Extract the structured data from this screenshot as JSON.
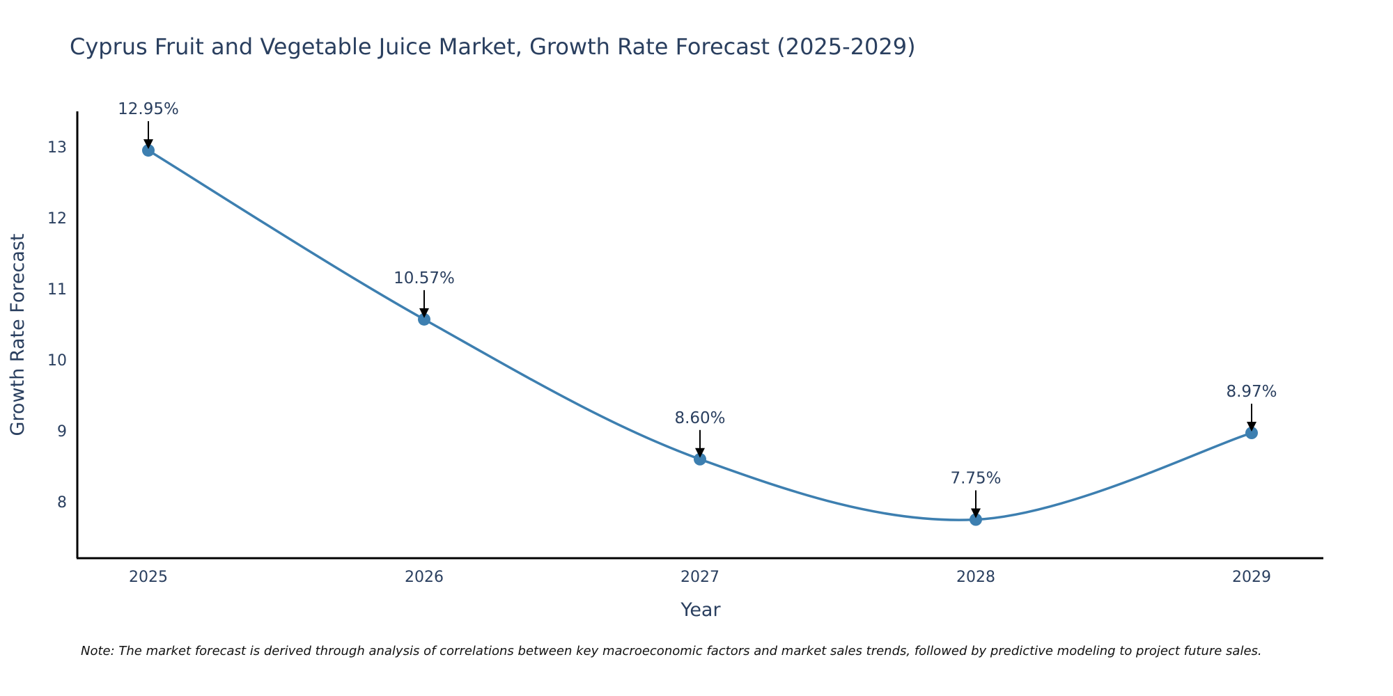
{
  "chart_data": {
    "type": "line",
    "title": "Cyprus Fruit and Vegetable Juice Market, Growth Rate Forecast (2025-2029)",
    "xlabel": "Year",
    "ylabel": "Growth Rate Forecast",
    "categories": [
      "2025",
      "2026",
      "2027",
      "2028",
      "2029"
    ],
    "series": [
      {
        "name": "Growth Rate Forecast",
        "values": [
          12.95,
          10.57,
          8.6,
          7.75,
          8.97
        ],
        "labels": [
          "12.95%",
          "10.57%",
          "8.60%",
          "7.75%",
          "8.97%"
        ],
        "color": "#3d7fb0",
        "line_shape": "spline",
        "markers": true
      }
    ],
    "yticks": [
      8,
      9,
      10,
      11,
      12,
      13
    ],
    "ytick_labels": [
      "8",
      "9",
      "10",
      "11",
      "12",
      "13"
    ],
    "ylim": [
      7.2,
      13.45
    ],
    "grid": false,
    "legend": "none",
    "annotations": {
      "style": "arrow-down",
      "arrow_color": "#000000"
    },
    "note": "Note: The market forecast is derived through analysis of correlations between key macroeconomic factors and market sales trends, followed by predictive modeling to project future sales."
  }
}
